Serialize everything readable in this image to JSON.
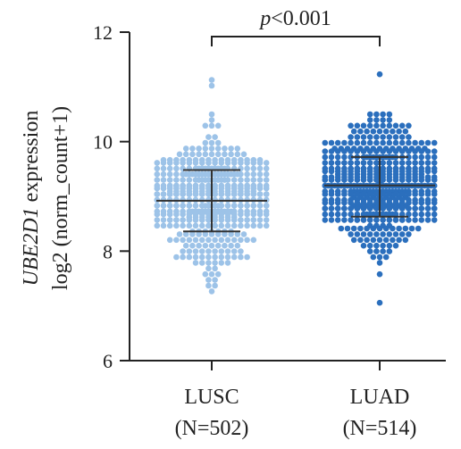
{
  "chart_data": {
    "type": "scatter",
    "subtype": "beeswarm",
    "categories": [
      "LUSC",
      "LUAD"
    ],
    "sample_labels": [
      "(N=502)",
      "(N=514)"
    ],
    "n": [
      502,
      514
    ],
    "series": [
      {
        "name": "LUSC",
        "color": "#9dc3e8",
        "mean": 8.92,
        "sd_lower": 8.36,
        "sd_upper": 9.48,
        "min": 7.28,
        "max": 11.08
      },
      {
        "name": "LUAD",
        "color": "#2b6fbd",
        "mean": 9.2,
        "sd_lower": 8.63,
        "sd_upper": 9.72,
        "min": 7.07,
        "max": 11.23
      }
    ],
    "ylabel_italic": "UBE2D1",
    "ylabel_rest": " expression",
    "ylabel_line2": "log2 (norm_count+1)",
    "ylim": [
      6,
      12
    ],
    "yticks": [
      "6",
      "8",
      "10",
      "12"
    ],
    "significance": {
      "p_italic": "p",
      "text": "<0.001"
    },
    "grid": false,
    "legend": "none"
  }
}
